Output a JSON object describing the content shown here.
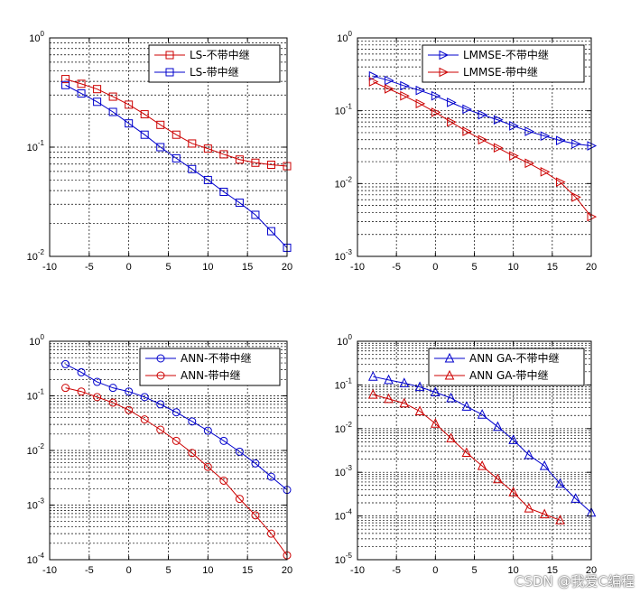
{
  "chart_data": [
    {
      "type": "line",
      "yscale": "log",
      "x_ticks": [
        "-10",
        "-5",
        "0",
        "5",
        "10",
        "15",
        "20"
      ],
      "xlim": [
        -10,
        20
      ],
      "ylim_exp": [
        -2,
        0
      ],
      "legend": "top-right",
      "series": [
        {
          "name": "LS-不带中继",
          "color": "#cc0000",
          "marker": "square",
          "x": [
            -8,
            -6,
            -4,
            -2,
            0,
            2,
            4,
            6,
            8,
            10,
            12,
            14,
            16,
            18,
            20
          ],
          "values": [
            0.42,
            0.38,
            0.34,
            0.29,
            0.245,
            0.2,
            0.16,
            0.13,
            0.108,
            0.097,
            0.086,
            0.077,
            0.072,
            0.069,
            0.067
          ]
        },
        {
          "name": "LS-带中继",
          "color": "#0000cc",
          "marker": "square",
          "x": [
            -8,
            -6,
            -4,
            -2,
            0,
            2,
            4,
            6,
            8,
            10,
            12,
            14,
            16,
            18,
            20
          ],
          "values": [
            0.37,
            0.31,
            0.26,
            0.21,
            0.165,
            0.13,
            0.1,
            0.079,
            0.063,
            0.05,
            0.039,
            0.031,
            0.024,
            0.017,
            0.012
          ]
        }
      ]
    },
    {
      "type": "line",
      "yscale": "log",
      "x_ticks": [
        "-10",
        "-5",
        "0",
        "5",
        "10",
        "15",
        "20"
      ],
      "xlim": [
        -10,
        20
      ],
      "ylim_exp": [
        -3,
        0
      ],
      "legend": "top-right",
      "series": [
        {
          "name": "LMMSE-不带中继",
          "color": "#0000cc",
          "marker": "triangle-right",
          "x": [
            -8,
            -6,
            -4,
            -2,
            0,
            2,
            4,
            6,
            8,
            10,
            12,
            14,
            16,
            18,
            20
          ],
          "values": [
            0.3,
            0.26,
            0.22,
            0.19,
            0.16,
            0.13,
            0.105,
            0.088,
            0.075,
            0.062,
            0.052,
            0.045,
            0.039,
            0.035,
            0.033
          ]
        },
        {
          "name": "LMMSE-带中继",
          "color": "#cc0000",
          "marker": "triangle-right",
          "x": [
            -8,
            -6,
            -4,
            -2,
            0,
            2,
            4,
            6,
            8,
            10,
            12,
            14,
            16,
            18,
            20
          ],
          "values": [
            0.25,
            0.2,
            0.16,
            0.125,
            0.095,
            0.07,
            0.052,
            0.04,
            0.031,
            0.024,
            0.019,
            0.0145,
            0.0105,
            0.0065,
            0.0035
          ]
        }
      ]
    },
    {
      "type": "line",
      "yscale": "log",
      "x_ticks": [
        "-10",
        "-5",
        "0",
        "5",
        "10",
        "15",
        "20"
      ],
      "xlim": [
        -10,
        20
      ],
      "ylim_exp": [
        -4,
        0
      ],
      "legend": "top-right",
      "series": [
        {
          "name": "ANN-不带中继",
          "color": "#0000cc",
          "marker": "circle",
          "x": [
            -8,
            -6,
            -4,
            -2,
            0,
            2,
            4,
            6,
            8,
            10,
            12,
            14,
            16,
            18,
            20
          ],
          "values": [
            0.38,
            0.27,
            0.18,
            0.14,
            0.12,
            0.095,
            0.07,
            0.05,
            0.034,
            0.023,
            0.015,
            0.0095,
            0.0058,
            0.0033,
            0.0019
          ]
        },
        {
          "name": "ANN-带中继",
          "color": "#cc0000",
          "marker": "circle",
          "x": [
            -8,
            -6,
            -4,
            -2,
            0,
            2,
            4,
            6,
            8,
            10,
            12,
            14,
            16,
            18,
            20
          ],
          "values": [
            0.14,
            0.12,
            0.095,
            0.075,
            0.055,
            0.037,
            0.024,
            0.015,
            0.009,
            0.005,
            0.0028,
            0.0013,
            0.00065,
            0.0003,
            0.00012
          ]
        }
      ]
    },
    {
      "type": "line",
      "yscale": "log",
      "x_ticks": [
        "-10",
        "-5",
        "0",
        "5",
        "10",
        "15",
        "20"
      ],
      "xlim": [
        -10,
        20
      ],
      "ylim_exp": [
        -5,
        0
      ],
      "legend": "top-right",
      "series": [
        {
          "name": "ANN GA-不带中继",
          "color": "#0000cc",
          "marker": "triangle-up",
          "x": [
            -8,
            -6,
            -4,
            -2,
            0,
            2,
            4,
            6,
            8,
            10,
            12,
            14,
            16,
            18,
            20
          ],
          "values": [
            0.155,
            0.13,
            0.11,
            0.09,
            0.068,
            0.05,
            0.032,
            0.021,
            0.011,
            0.0055,
            0.0025,
            0.0014,
            0.00055,
            0.00025,
            0.00012
          ]
        },
        {
          "name": "ANN GA-带中继",
          "color": "#cc0000",
          "marker": "triangle-up",
          "x": [
            -8,
            -6,
            -4,
            -2,
            0,
            2,
            4,
            6,
            8,
            10,
            12,
            14,
            16
          ],
          "values": [
            0.06,
            0.048,
            0.038,
            0.025,
            0.013,
            0.006,
            0.0028,
            0.0014,
            0.0007,
            0.00035,
            0.00015,
            0.00011,
            8e-05
          ]
        }
      ]
    }
  ],
  "watermark": "CSDN @我爱C编程"
}
